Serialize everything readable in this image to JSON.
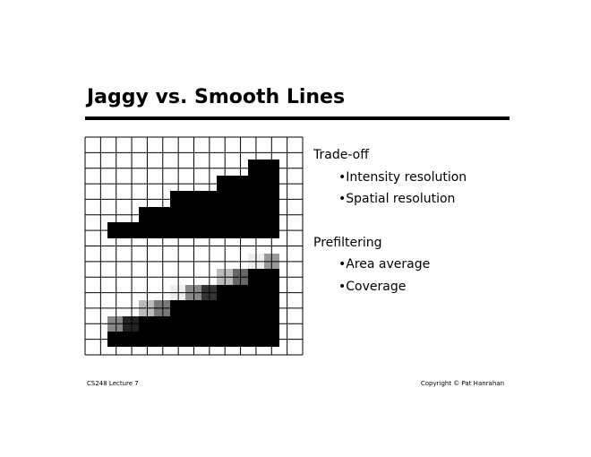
{
  "header": {
    "title": "Jaggy vs. Smooth Lines"
  },
  "sections": [
    {
      "heading": "Trade-off",
      "items": [
        "•Intensity resolution",
        "•Spatial resolution"
      ]
    },
    {
      "heading": "Prefiltering",
      "items": [
        "•Area average",
        "•Coverage"
      ]
    }
  ],
  "footer": {
    "left": "CS248 Lecture 7",
    "right": "Copyright © Pat Hanrahan"
  }
}
